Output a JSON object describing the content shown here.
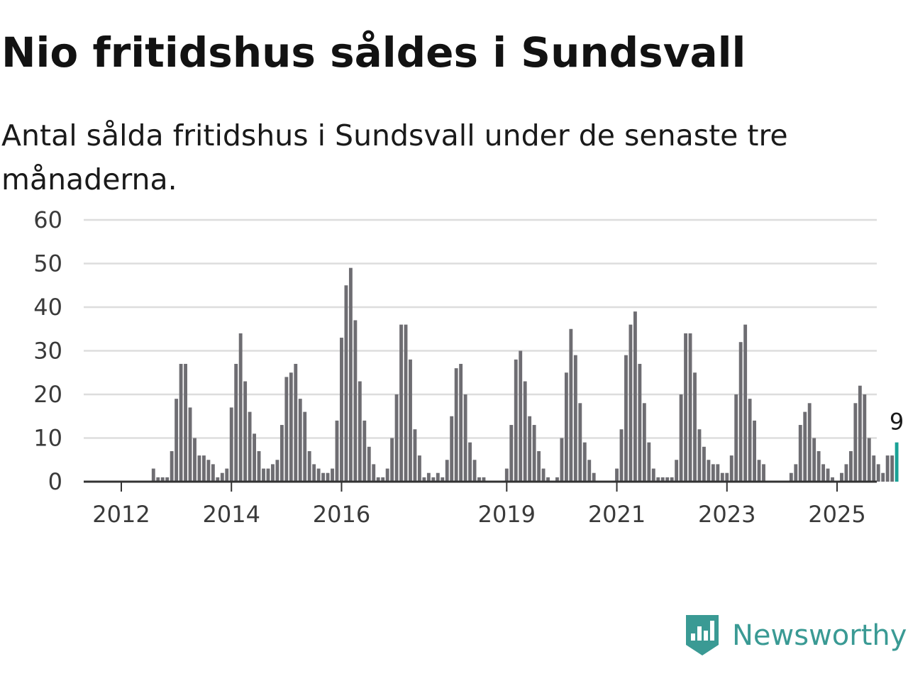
{
  "title": "Nio fritidshus såldes i Sundsvall",
  "subtitle": "Antal sålda fritidshus i Sundsvall under de senaste tre månaderna.",
  "brand": {
    "name": "Newsworthy",
    "icon": "newsworthy-logo-icon",
    "color": "#3a9a94"
  },
  "colors": {
    "bar": "#6e6d72",
    "highlight": "#1aa196",
    "grid": "#dddddd",
    "axis": "#333333"
  },
  "chart_data": {
    "type": "bar",
    "title": "Nio fritidshus såldes i Sundsvall",
    "ylim": [
      0,
      60
    ],
    "yticks": [
      0,
      10,
      20,
      30,
      40,
      50,
      60
    ],
    "xticks": [
      "2012",
      "2014",
      "2016",
      "2019",
      "2021",
      "2023",
      "2025"
    ],
    "grid": true,
    "start": "2011-10",
    "last_label": "9",
    "values": [
      0,
      0,
      0,
      0,
      0,
      0,
      0,
      0,
      0,
      0,
      3,
      1,
      1,
      1,
      7,
      19,
      27,
      27,
      17,
      10,
      6,
      6,
      5,
      4,
      1,
      2,
      3,
      17,
      27,
      34,
      23,
      16,
      11,
      7,
      3,
      3,
      4,
      5,
      13,
      24,
      25,
      27,
      19,
      16,
      7,
      4,
      3,
      2,
      2,
      3,
      14,
      33,
      45,
      49,
      37,
      23,
      14,
      8,
      4,
      1,
      1,
      3,
      10,
      20,
      36,
      36,
      28,
      12,
      6,
      1,
      2,
      1,
      2,
      1,
      5,
      15,
      26,
      27,
      20,
      9,
      5,
      1,
      1,
      0,
      0,
      0,
      0,
      3,
      13,
      28,
      30,
      23,
      15,
      13,
      7,
      3,
      1,
      0,
      1,
      10,
      25,
      35,
      29,
      18,
      9,
      5,
      2,
      0,
      0,
      0,
      0,
      3,
      12,
      29,
      36,
      39,
      27,
      18,
      9,
      3,
      1,
      1,
      1,
      1,
      5,
      20,
      34,
      34,
      25,
      12,
      8,
      5,
      4,
      4,
      2,
      2,
      6,
      20,
      32,
      36,
      19,
      14,
      5,
      4,
      0,
      0,
      0,
      0,
      0,
      2,
      4,
      13,
      16,
      18,
      10,
      7,
      4,
      3,
      1,
      0,
      2,
      4,
      7,
      18,
      22,
      20,
      10,
      6,
      4,
      2,
      6,
      6,
      9
    ]
  }
}
